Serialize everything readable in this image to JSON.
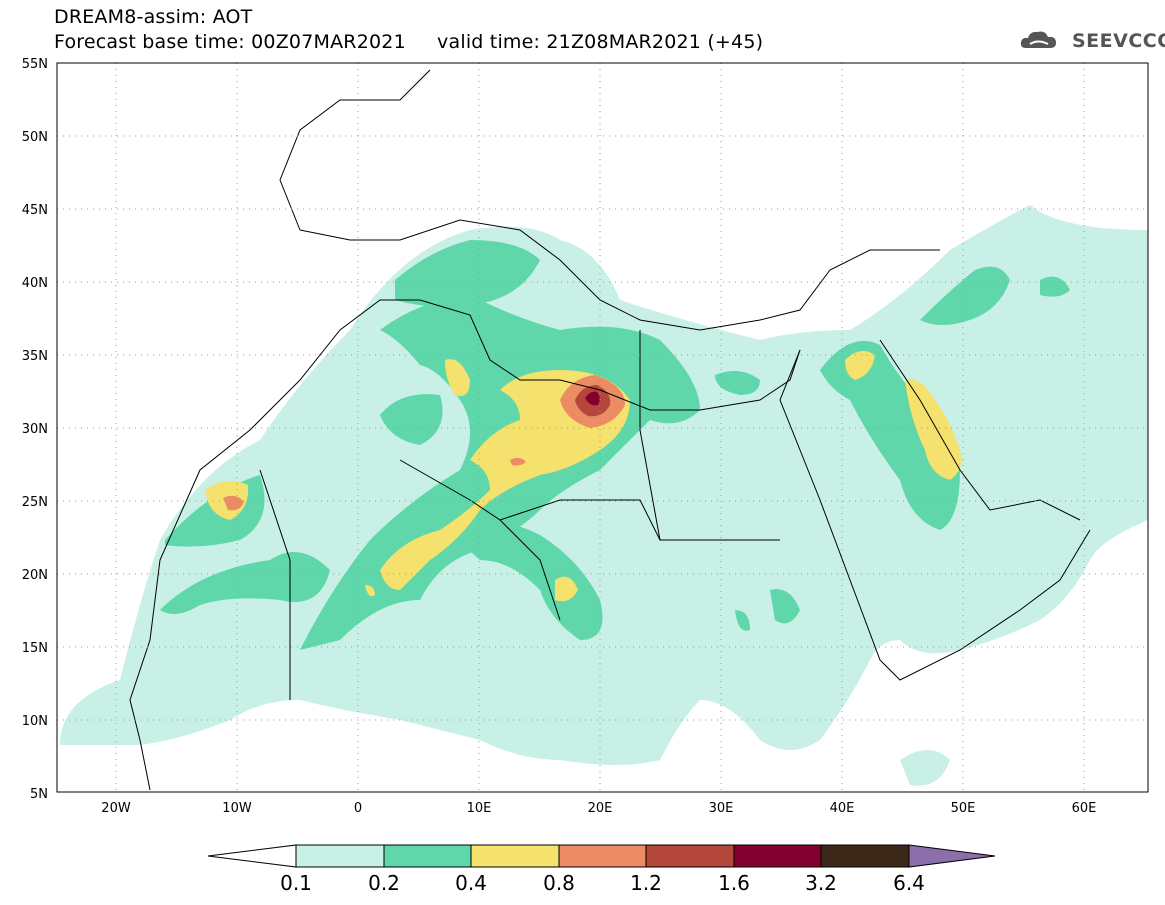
{
  "title": {
    "line1": "DREAM8-assim: AOT",
    "line2": "Forecast base time: 00Z07MAR2021     valid time: 21Z08MAR2021 (+45)"
  },
  "logo": {
    "text": "SEEVCCC",
    "icon": "cloud-icon"
  },
  "map": {
    "lat_labels": [
      "55N",
      "50N",
      "45N",
      "40N",
      "35N",
      "30N",
      "25N",
      "20N",
      "15N",
      "10N",
      "5N"
    ],
    "lon_labels": [
      "20W",
      "10W",
      "0",
      "10E",
      "20E",
      "30E",
      "40E",
      "50E",
      "60E"
    ],
    "lat_range": [
      5,
      55
    ],
    "lon_range": [
      -25,
      65
    ],
    "grid": "dotted"
  },
  "colorbar": {
    "labels": [
      "0.1",
      "0.2",
      "0.4",
      "0.8",
      "1.2",
      "1.6",
      "3.2",
      "6.4"
    ],
    "colors": [
      "#c8f0e6",
      "#5fd7aa",
      "#f5e16e",
      "#eb8c64",
      "#b4463c",
      "#82002d",
      "#3c2819",
      "#8c6eaa"
    ]
  },
  "legend_colors": {
    "c01": "#c8f0e6",
    "c02": "#5fd7aa",
    "c04": "#f5e16e",
    "c08": "#eb8c64",
    "c12": "#b4463c",
    "c16": "#82002d"
  }
}
